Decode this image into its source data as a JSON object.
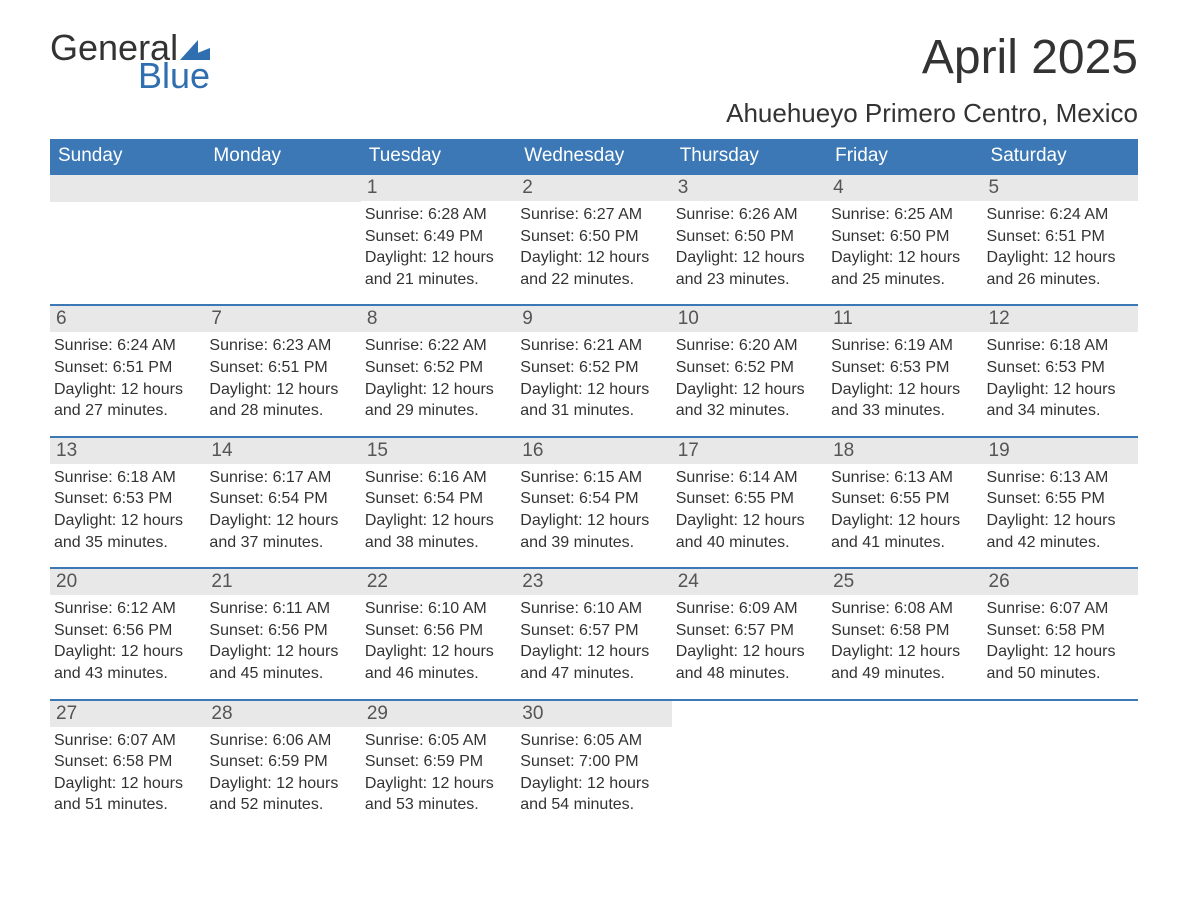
{
  "logo": {
    "text_general": "General",
    "text_blue": "Blue",
    "flag_color": "#2f6fb0"
  },
  "title": "April 2025",
  "location": "Ahuehueyo Primero Centro, Mexico",
  "colors": {
    "header_bg": "#3b78b5",
    "header_text": "#ffffff",
    "daynum_bg": "#e8e8e8",
    "daynum_text": "#555555",
    "body_text": "#333333",
    "row_border": "#3b78b5"
  },
  "fonts": {
    "title_size_pt": 36,
    "location_size_pt": 20,
    "dayheader_size_pt": 14,
    "daynum_size_pt": 14,
    "body_size_pt": 12
  },
  "day_names": [
    "Sunday",
    "Monday",
    "Tuesday",
    "Wednesday",
    "Thursday",
    "Friday",
    "Saturday"
  ],
  "labels": {
    "sunrise": "Sunrise:",
    "sunset": "Sunset:",
    "daylight": "Daylight:"
  },
  "weeks": [
    [
      {
        "day": "",
        "sunrise": "",
        "sunset": "",
        "daylight": ""
      },
      {
        "day": "",
        "sunrise": "",
        "sunset": "",
        "daylight": ""
      },
      {
        "day": "1",
        "sunrise": "6:28 AM",
        "sunset": "6:49 PM",
        "daylight": "12 hours and 21 minutes."
      },
      {
        "day": "2",
        "sunrise": "6:27 AM",
        "sunset": "6:50 PM",
        "daylight": "12 hours and 22 minutes."
      },
      {
        "day": "3",
        "sunrise": "6:26 AM",
        "sunset": "6:50 PM",
        "daylight": "12 hours and 23 minutes."
      },
      {
        "day": "4",
        "sunrise": "6:25 AM",
        "sunset": "6:50 PM",
        "daylight": "12 hours and 25 minutes."
      },
      {
        "day": "5",
        "sunrise": "6:24 AM",
        "sunset": "6:51 PM",
        "daylight": "12 hours and 26 minutes."
      }
    ],
    [
      {
        "day": "6",
        "sunrise": "6:24 AM",
        "sunset": "6:51 PM",
        "daylight": "12 hours and 27 minutes."
      },
      {
        "day": "7",
        "sunrise": "6:23 AM",
        "sunset": "6:51 PM",
        "daylight": "12 hours and 28 minutes."
      },
      {
        "day": "8",
        "sunrise": "6:22 AM",
        "sunset": "6:52 PM",
        "daylight": "12 hours and 29 minutes."
      },
      {
        "day": "9",
        "sunrise": "6:21 AM",
        "sunset": "6:52 PM",
        "daylight": "12 hours and 31 minutes."
      },
      {
        "day": "10",
        "sunrise": "6:20 AM",
        "sunset": "6:52 PM",
        "daylight": "12 hours and 32 minutes."
      },
      {
        "day": "11",
        "sunrise": "6:19 AM",
        "sunset": "6:53 PM",
        "daylight": "12 hours and 33 minutes."
      },
      {
        "day": "12",
        "sunrise": "6:18 AM",
        "sunset": "6:53 PM",
        "daylight": "12 hours and 34 minutes."
      }
    ],
    [
      {
        "day": "13",
        "sunrise": "6:18 AM",
        "sunset": "6:53 PM",
        "daylight": "12 hours and 35 minutes."
      },
      {
        "day": "14",
        "sunrise": "6:17 AM",
        "sunset": "6:54 PM",
        "daylight": "12 hours and 37 minutes."
      },
      {
        "day": "15",
        "sunrise": "6:16 AM",
        "sunset": "6:54 PM",
        "daylight": "12 hours and 38 minutes."
      },
      {
        "day": "16",
        "sunrise": "6:15 AM",
        "sunset": "6:54 PM",
        "daylight": "12 hours and 39 minutes."
      },
      {
        "day": "17",
        "sunrise": "6:14 AM",
        "sunset": "6:55 PM",
        "daylight": "12 hours and 40 minutes."
      },
      {
        "day": "18",
        "sunrise": "6:13 AM",
        "sunset": "6:55 PM",
        "daylight": "12 hours and 41 minutes."
      },
      {
        "day": "19",
        "sunrise": "6:13 AM",
        "sunset": "6:55 PM",
        "daylight": "12 hours and 42 minutes."
      }
    ],
    [
      {
        "day": "20",
        "sunrise": "6:12 AM",
        "sunset": "6:56 PM",
        "daylight": "12 hours and 43 minutes."
      },
      {
        "day": "21",
        "sunrise": "6:11 AM",
        "sunset": "6:56 PM",
        "daylight": "12 hours and 45 minutes."
      },
      {
        "day": "22",
        "sunrise": "6:10 AM",
        "sunset": "6:56 PM",
        "daylight": "12 hours and 46 minutes."
      },
      {
        "day": "23",
        "sunrise": "6:10 AM",
        "sunset": "6:57 PM",
        "daylight": "12 hours and 47 minutes."
      },
      {
        "day": "24",
        "sunrise": "6:09 AM",
        "sunset": "6:57 PM",
        "daylight": "12 hours and 48 minutes."
      },
      {
        "day": "25",
        "sunrise": "6:08 AM",
        "sunset": "6:58 PM",
        "daylight": "12 hours and 49 minutes."
      },
      {
        "day": "26",
        "sunrise": "6:07 AM",
        "sunset": "6:58 PM",
        "daylight": "12 hours and 50 minutes."
      }
    ],
    [
      {
        "day": "27",
        "sunrise": "6:07 AM",
        "sunset": "6:58 PM",
        "daylight": "12 hours and 51 minutes."
      },
      {
        "day": "28",
        "sunrise": "6:06 AM",
        "sunset": "6:59 PM",
        "daylight": "12 hours and 52 minutes."
      },
      {
        "day": "29",
        "sunrise": "6:05 AM",
        "sunset": "6:59 PM",
        "daylight": "12 hours and 53 minutes."
      },
      {
        "day": "30",
        "sunrise": "6:05 AM",
        "sunset": "7:00 PM",
        "daylight": "12 hours and 54 minutes."
      },
      {
        "day": "",
        "sunrise": "",
        "sunset": "",
        "daylight": ""
      },
      {
        "day": "",
        "sunrise": "",
        "sunset": "",
        "daylight": ""
      },
      {
        "day": "",
        "sunrise": "",
        "sunset": "",
        "daylight": ""
      }
    ]
  ]
}
